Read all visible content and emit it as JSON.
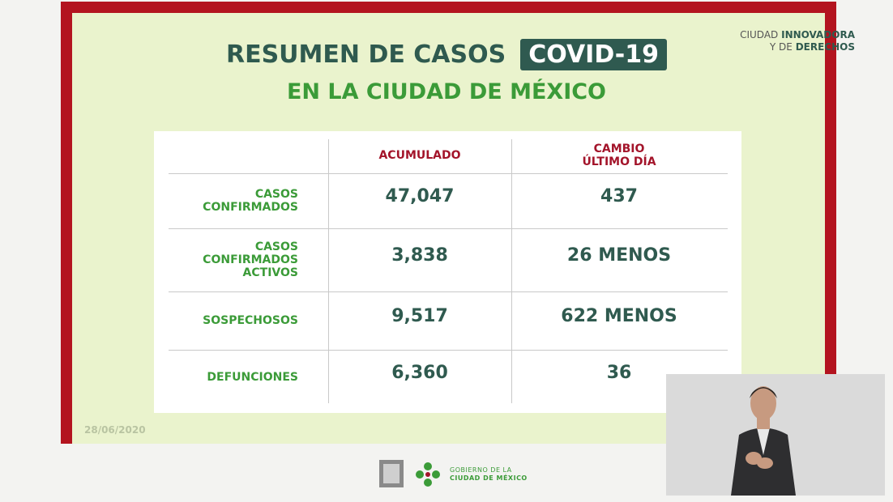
{
  "header": {
    "title": "RESUMEN DE CASOS",
    "badge": "COVID-19",
    "subtitle": "EN LA CIUDAD DE MÉXICO"
  },
  "branding": {
    "line1": [
      "CIUDAD",
      "INNOVADORA"
    ],
    "line2": [
      "Y DE",
      "DERECHOS"
    ]
  },
  "table": {
    "columns": [
      [
        "ACUMULADO"
      ],
      [
        "CAMBIO",
        "ÚLTIMO DÍA"
      ]
    ],
    "rows": [
      {
        "label": [
          "CASOS",
          "CONFIRMADOS"
        ],
        "cells": [
          "47,047",
          "437"
        ]
      },
      {
        "label": [
          "CASOS",
          "CONFIRMADOS",
          "ACTIVOS"
        ],
        "cells": [
          "3,838",
          "26 MENOS"
        ]
      },
      {
        "label": [
          "SOSPECHOSOS"
        ],
        "cells": [
          "9,517",
          "622 MENOS"
        ]
      },
      {
        "label": [
          "DEFUNCIONES"
        ],
        "cells": [
          "6,360",
          "36"
        ]
      }
    ]
  },
  "date": "28/06/2020",
  "footer": {
    "logo_text": [
      "GOBIERNO DE LA",
      "CIUDAD DE MÉXICO"
    ]
  }
}
